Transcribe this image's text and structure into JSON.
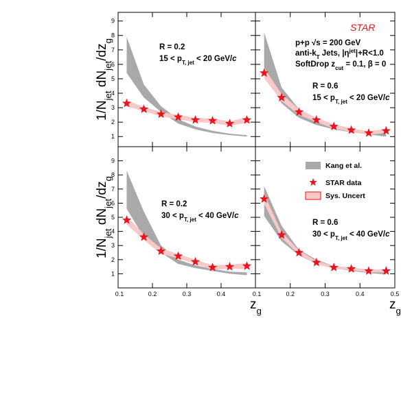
{
  "chart_data": [
    {
      "type": "band-star",
      "xlim": [
        0.1,
        0.5
      ],
      "ylim": [
        0.3,
        9.6
      ],
      "xticks": [
        0.1,
        0.2,
        0.3,
        0.4,
        0.5
      ],
      "yticks": [
        1,
        2,
        3,
        4,
        5,
        6,
        7,
        8,
        9
      ],
      "x": [
        0.125,
        0.175,
        0.225,
        0.275,
        0.325,
        0.375,
        0.425,
        0.475
      ],
      "ylabel": [
        {
          "text": "1/N"
        },
        {
          "text": "jet",
          "sub": true
        },
        {
          "text": " dN"
        },
        {
          "text": "jet",
          "sub": true
        },
        {
          "text": "/dz"
        },
        {
          "text": "g",
          "sub": true
        }
      ],
      "annotations": [
        [
          {
            "text": "R = 0.2"
          }
        ],
        [
          {
            "text": "15 < p"
          },
          {
            "text": "T, jet",
            "sub": true
          },
          {
            "text": " < 20 GeV/"
          },
          {
            "text": "c",
            "italic": true
          }
        ]
      ],
      "series": [
        {
          "name": "Kang et al.",
          "color": "#a9a9a9",
          "low": [
            5.4,
            3.7,
            2.7,
            1.9,
            1.5,
            1.25,
            1.1,
            1.0
          ],
          "high": [
            7.9,
            4.6,
            3.1,
            2.2,
            1.7,
            1.4,
            1.2,
            1.1
          ]
        },
        {
          "name": "STAR data",
          "color": "#e8141e",
          "values": [
            3.3,
            2.9,
            2.55,
            2.35,
            2.15,
            2.1,
            1.9,
            2.15
          ]
        },
        {
          "name": "Sys. Uncert",
          "color": "#f9c8c8",
          "edgecolor": "#e8141e",
          "errors": [
            0.2,
            0.15,
            0.15,
            0.15,
            0.15,
            0.15,
            0.15,
            0.2
          ]
        }
      ]
    },
    {
      "type": "band-star",
      "xlim": [
        0.1,
        0.5
      ],
      "ylim": [
        0.3,
        9.6
      ],
      "xticks": [
        0.1,
        0.2,
        0.3,
        0.4,
        0.5
      ],
      "yticks": [
        1,
        2,
        3,
        4,
        5,
        6,
        7,
        8,
        9
      ],
      "x": [
        0.125,
        0.175,
        0.225,
        0.275,
        0.325,
        0.375,
        0.425,
        0.475
      ],
      "experiment": "STAR",
      "annotations": [
        [
          {
            "text": "p+p  √s = 200 GeV"
          }
        ],
        [
          {
            "text": "anti-k"
          },
          {
            "text": "T",
            "sub": true
          },
          {
            "text": " Jets, |η"
          },
          {
            "text": "jet",
            "sup": true
          },
          {
            "text": "|+R<1.0"
          }
        ],
        [
          {
            "text": "SoftDrop z"
          },
          {
            "text": "cut",
            "sub": true
          },
          {
            "text": " = 0.1,  β = 0"
          }
        ],
        [
          {
            "text": "R = 0.6"
          }
        ],
        [
          {
            "text": "15 < p"
          },
          {
            "text": "T, jet",
            "sub": true
          },
          {
            "text": " < 20 GeV/"
          },
          {
            "text": "c",
            "italic": true
          }
        ]
      ],
      "series": [
        {
          "name": "Kang et al.",
          "color": "#a9a9a9",
          "low": [
            5.5,
            3.3,
            2.3,
            1.8,
            1.5,
            1.3,
            1.15,
            1.0
          ],
          "high": [
            8.2,
            4.4,
            2.9,
            2.2,
            1.7,
            1.45,
            1.3,
            1.2
          ]
        },
        {
          "name": "STAR data",
          "color": "#e8141e",
          "values": [
            5.4,
            3.7,
            2.7,
            2.15,
            1.7,
            1.45,
            1.25,
            1.4
          ]
        },
        {
          "name": "Sys. Uncert",
          "color": "#f9c8c8",
          "edgecolor": "#e8141e",
          "errors": [
            0.35,
            0.25,
            0.2,
            0.15,
            0.15,
            0.12,
            0.12,
            0.15
          ]
        }
      ]
    },
    {
      "type": "band-star",
      "xlim": [
        0.1,
        0.5
      ],
      "ylim": [
        0,
        10
      ],
      "xticks": [
        0.1,
        0.2,
        0.3,
        0.4
      ],
      "yticks": [
        1,
        2,
        3,
        4,
        5,
        6,
        7,
        8,
        9
      ],
      "x": [
        0.125,
        0.175,
        0.225,
        0.275,
        0.325,
        0.375,
        0.425,
        0.475
      ],
      "ylabel": [
        {
          "text": "1/N"
        },
        {
          "text": "jet",
          "sub": true
        },
        {
          "text": " dN"
        },
        {
          "text": "jet",
          "sub": true
        },
        {
          "text": "/dz"
        },
        {
          "text": "g",
          "sub": true
        }
      ],
      "xlabel": [
        {
          "text": "z"
        },
        {
          "text": "g",
          "sub": true
        }
      ],
      "annotations": [
        [
          {
            "text": "R = 0.2"
          }
        ],
        [
          {
            "text": "30 < p"
          },
          {
            "text": "T, jet",
            "sub": true
          },
          {
            "text": " < 40 GeV/"
          },
          {
            "text": "c",
            "italic": true
          }
        ]
      ],
      "series": [
        {
          "name": "Kang et al.",
          "color": "#a9a9a9",
          "low": [
            5.6,
            3.6,
            2.5,
            1.7,
            1.4,
            1.2,
            1.0,
            0.9
          ],
          "high": [
            8.3,
            5.4,
            3.0,
            2.0,
            1.6,
            1.35,
            1.15,
            1.1
          ]
        },
        {
          "name": "STAR data",
          "color": "#e8141e",
          "values": [
            4.8,
            3.6,
            2.6,
            2.25,
            1.85,
            1.45,
            1.5,
            1.55
          ]
        },
        {
          "name": "Sys. Uncert",
          "color": "#f9c8c8",
          "edgecolor": "#e8141e",
          "errors": [
            0.3,
            0.2,
            0.2,
            0.15,
            0.15,
            0.15,
            0.15,
            0.2
          ]
        }
      ]
    },
    {
      "type": "band-star",
      "xlim": [
        0.1,
        0.5
      ],
      "ylim": [
        0,
        10
      ],
      "xticks": [
        0.1,
        0.2,
        0.3,
        0.4,
        0.5
      ],
      "yticks": [
        1,
        2,
        3,
        4,
        5,
        6,
        7,
        8,
        9
      ],
      "x": [
        0.125,
        0.175,
        0.225,
        0.275,
        0.325,
        0.375,
        0.425,
        0.475
      ],
      "xlabel": [
        {
          "text": "z"
        },
        {
          "text": "g",
          "sub": true
        }
      ],
      "legend": true,
      "annotations": [
        [
          {
            "text": "R = 0.6"
          }
        ],
        [
          {
            "text": "30 < p"
          },
          {
            "text": "T, jet",
            "sub": true
          },
          {
            "text": " < 40 GeV/"
          },
          {
            "text": "c",
            "italic": true
          }
        ]
      ],
      "series": [
        {
          "name": "Kang et al.",
          "color": "#a9a9a9",
          "low": [
            5.1,
            3.3,
            2.3,
            1.7,
            1.4,
            1.2,
            1.05,
            0.95
          ],
          "high": [
            7.2,
            4.4,
            2.7,
            2.0,
            1.55,
            1.35,
            1.2,
            1.1
          ]
        },
        {
          "name": "STAR data",
          "color": "#e8141e",
          "values": [
            6.3,
            3.75,
            2.5,
            1.8,
            1.45,
            1.35,
            1.2,
            1.2
          ]
        },
        {
          "name": "Sys. Uncert",
          "color": "#f9c8c8",
          "edgecolor": "#e8141e",
          "errors": [
            0.35,
            0.2,
            0.15,
            0.12,
            0.1,
            0.1,
            0.1,
            0.1
          ]
        }
      ]
    }
  ]
}
